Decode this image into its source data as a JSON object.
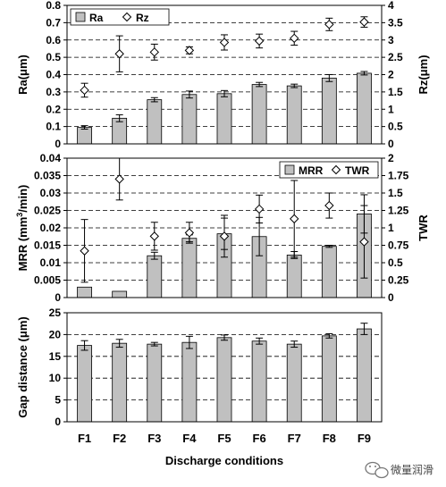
{
  "chart_data": [
    {
      "type": "bar",
      "categories": [
        "F1",
        "F2",
        "F3",
        "F4",
        "F5",
        "F6",
        "F7",
        "F8",
        "F9"
      ],
      "ylim": [
        0,
        0.8
      ],
      "y2lim": [
        0,
        4
      ],
      "yticks": [
        "0",
        "0.1",
        "0.2",
        "0.3",
        "0.4",
        "0.5",
        "0.6",
        "0.7",
        "0.8"
      ],
      "y2ticks": [
        "0",
        "0.5",
        "1",
        "1.5",
        "2",
        "2.5",
        "3",
        "3.5",
        "4"
      ],
      "ylabel": "Ra(μm)",
      "y2label": "Rz(μm)",
      "grid": true,
      "legend_position": "top-left",
      "series": [
        {
          "name": "Ra",
          "kind": "bar",
          "axis": "left",
          "color": "#c0c0c0",
          "values": [
            0.095,
            0.148,
            0.255,
            0.285,
            0.29,
            0.343,
            0.335,
            0.38,
            0.408
          ],
          "errors": [
            0.01,
            0.02,
            0.012,
            0.02,
            0.018,
            0.012,
            0.01,
            0.02,
            0.01
          ]
        },
        {
          "name": "Rz",
          "kind": "marker",
          "axis": "right",
          "marker": "diamond",
          "values": [
            1.55,
            2.6,
            2.65,
            2.7,
            2.93,
            2.97,
            3.05,
            3.45,
            3.52
          ],
          "errors": [
            0.2,
            0.52,
            0.23,
            0.1,
            0.22,
            0.2,
            0.2,
            0.18,
            0.15
          ]
        }
      ]
    },
    {
      "type": "bar",
      "categories": [
        "F1",
        "F2",
        "F3",
        "F4",
        "F5",
        "F6",
        "F7",
        "F8",
        "F9"
      ],
      "ylim": [
        0,
        0.04
      ],
      "y2lim": [
        0,
        2
      ],
      "yticks": [
        "0",
        "0.005",
        "0.01",
        "0.015",
        "0.02",
        "0.025",
        "0.03",
        "0.035",
        "0.04"
      ],
      "y2ticks": [
        "0",
        "0.25",
        "0.5",
        "0.75",
        "1",
        "1.25",
        "1.5",
        "1.75",
        "2"
      ],
      "ylabel_parts": [
        "MRR (mm",
        "3",
        "/min)"
      ],
      "y2label": "TWR",
      "grid": true,
      "legend_position": "top-right",
      "series": [
        {
          "name": "MRR",
          "kind": "bar",
          "axis": "left",
          "color": "#c0c0c0",
          "values": [
            0.003,
            0.0018,
            0.012,
            0.017,
            0.0183,
            0.0175,
            0.0122,
            0.0147,
            0.024
          ],
          "errors": [
            0,
            0,
            0.001,
            0.001,
            0.0045,
            0.0055,
            0.001,
            0.0003,
            0.0055
          ]
        },
        {
          "name": "TWR",
          "kind": "marker",
          "axis": "right",
          "marker": "diamond",
          "values": [
            0.67,
            1.7,
            0.88,
            0.93,
            0.88,
            1.27,
            1.13,
            1.32,
            0.8
          ],
          "errors": [
            0.45,
            0.3,
            0.2,
            0.15,
            0.3,
            0.2,
            0.55,
            0.18,
            0.52
          ]
        }
      ]
    },
    {
      "type": "bar",
      "categories": [
        "F1",
        "F2",
        "F3",
        "F4",
        "F5",
        "F6",
        "F7",
        "F8",
        "F9"
      ],
      "ylim": [
        0,
        25
      ],
      "yticks": [
        "0",
        "5",
        "10",
        "15",
        "20",
        "25"
      ],
      "ylabel": "Gap distance (μm)",
      "xlabel": "Discharge conditions",
      "grid": true,
      "series": [
        {
          "kind": "bar",
          "axis": "left",
          "color": "#c0c0c0",
          "values": [
            17.5,
            18.0,
            17.8,
            18.2,
            19.3,
            18.5,
            17.8,
            19.7,
            21.3
          ],
          "errors": [
            1.1,
            0.9,
            0.4,
            1.4,
            0.6,
            0.7,
            0.7,
            0.5,
            1.3
          ]
        }
      ]
    }
  ],
  "watermark": {
    "text": "微量润滑"
  }
}
